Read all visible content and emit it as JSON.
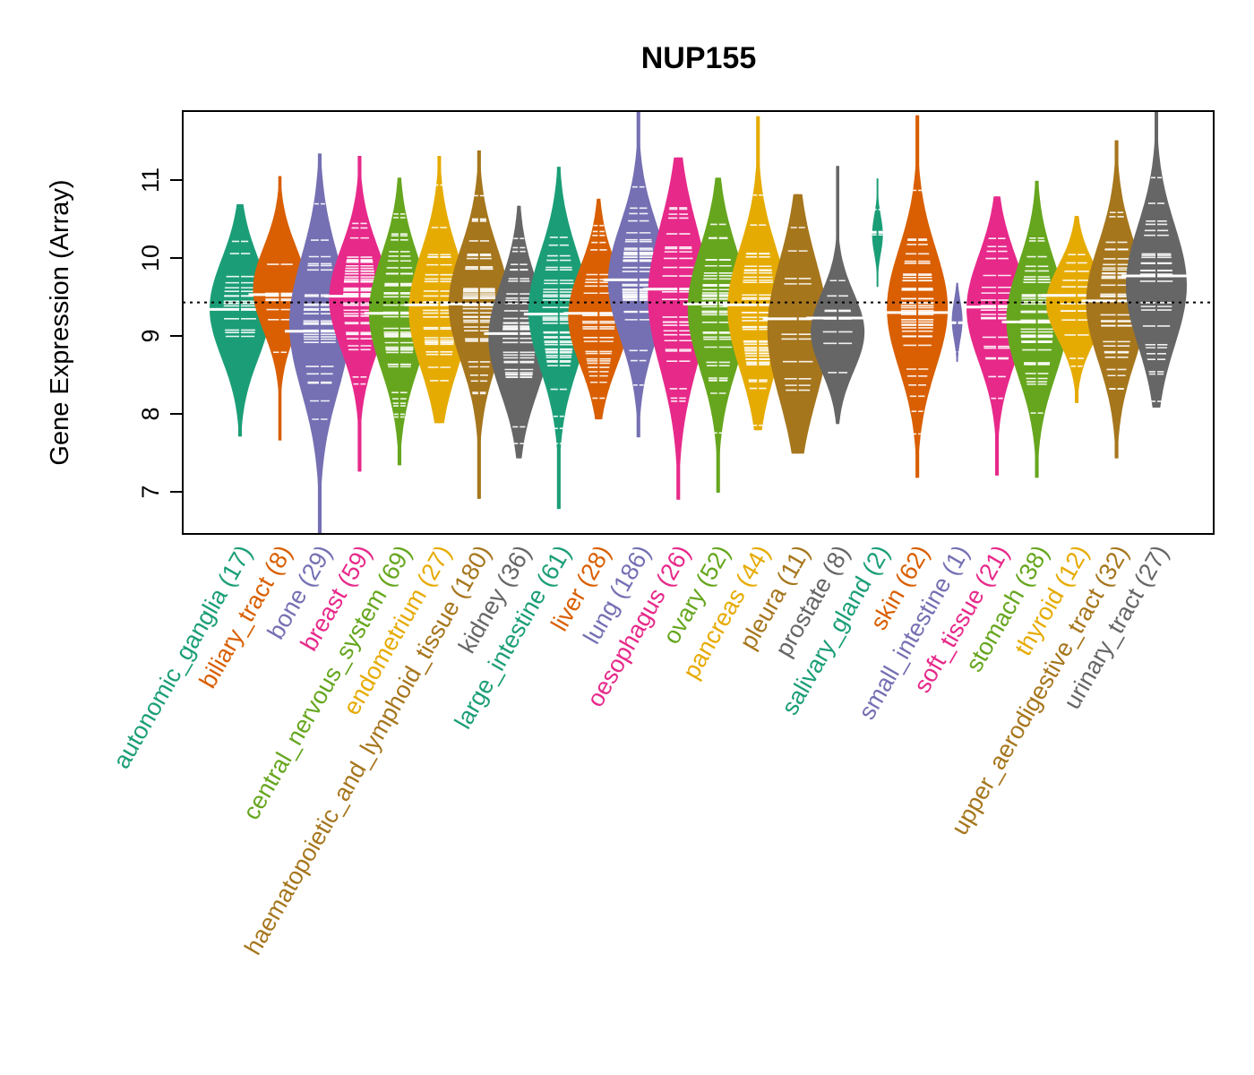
{
  "chart_data": {
    "type": "beanplot",
    "title": "NUP155",
    "xlabel": "",
    "ylabel": "Gene Expression (Array)",
    "ylim": [
      6.45,
      11.9
    ],
    "yticks": [
      7,
      8,
      9,
      10,
      11
    ],
    "grid": false,
    "legend": "none",
    "reference_line": {
      "value": 9.43,
      "style": "dotted",
      "color": "#000000"
    },
    "groups": [
      {
        "name": "autonomic_ganglia",
        "n": 17,
        "label": "autonomic_ganglia (17)",
        "color": "#1B9E77",
        "median": 9.34,
        "min": 7.71,
        "max": 10.69,
        "q_low": 8.65,
        "q_high": 10.05
      },
      {
        "name": "biliary_tract",
        "n": 8,
        "label": "biliary_tract (8)",
        "color": "#D95F02",
        "median": 9.53,
        "min": 7.66,
        "max": 11.05,
        "q_low": 9.0,
        "q_high": 10.2
      },
      {
        "name": "bone",
        "n": 29,
        "label": "bone (29)",
        "color": "#7570B3",
        "median": 9.06,
        "min": 6.46,
        "max": 11.34,
        "q_low": 8.2,
        "q_high": 10.1
      },
      {
        "name": "breast",
        "n": 59,
        "label": "breast (59)",
        "color": "#E7298A",
        "median": 9.51,
        "min": 7.26,
        "max": 11.31,
        "q_low": 8.75,
        "q_high": 10.2
      },
      {
        "name": "central_nervous_system",
        "n": 69,
        "label": "central_nervous_system (69)",
        "color": "#66A61E",
        "median": 9.29,
        "min": 7.34,
        "max": 11.03,
        "q_low": 8.5,
        "q_high": 10.1
      },
      {
        "name": "endometrium",
        "n": 27,
        "label": "endometrium (27)",
        "color": "#E6AB02",
        "median": 9.4,
        "min": 7.88,
        "max": 11.31,
        "q_low": 8.5,
        "q_high": 10.15
      },
      {
        "name": "haematopoietic_and_lymphoid_tissue",
        "n": 180,
        "label": "haematopoietic_and_lymphoid_tissue (180)",
        "color": "#A6761D",
        "median": 9.41,
        "min": 6.91,
        "max": 11.38,
        "q_low": 8.6,
        "q_high": 10.2
      },
      {
        "name": "kidney",
        "n": 36,
        "label": "kidney (36)",
        "color": "#666666",
        "median": 9.03,
        "min": 7.43,
        "max": 10.67,
        "q_low": 8.2,
        "q_high": 9.75
      },
      {
        "name": "large_intestine",
        "n": 61,
        "label": "large_intestine (61)",
        "color": "#1B9E77",
        "median": 9.28,
        "min": 6.78,
        "max": 11.17,
        "q_low": 8.5,
        "q_high": 10.15
      },
      {
        "name": "liver",
        "n": 28,
        "label": "liver (28)",
        "color": "#D95F02",
        "median": 9.29,
        "min": 7.93,
        "max": 10.76,
        "q_low": 8.55,
        "q_high": 9.95
      },
      {
        "name": "lung",
        "n": 186,
        "label": "lung (186)",
        "color": "#7570B3",
        "median": 9.72,
        "min": 7.7,
        "max": 11.89,
        "q_low": 8.9,
        "q_high": 10.5
      },
      {
        "name": "oesophagus",
        "n": 26,
        "label": "oesophagus (26)",
        "color": "#E7298A",
        "median": 9.6,
        "min": 6.9,
        "max": 11.29,
        "q_low": 8.5,
        "q_high": 10.5
      },
      {
        "name": "ovary",
        "n": 52,
        "label": "ovary (52)",
        "color": "#66A61E",
        "median": 9.41,
        "min": 6.99,
        "max": 11.03,
        "q_low": 8.5,
        "q_high": 10.2
      },
      {
        "name": "pancreas",
        "n": 44,
        "label": "pancreas (44)",
        "color": "#E6AB02",
        "median": 9.4,
        "min": 7.79,
        "max": 11.82,
        "q_low": 8.5,
        "q_high": 10.2
      },
      {
        "name": "pleura",
        "n": 11,
        "label": "pleura (11)",
        "color": "#A6761D",
        "median": 9.22,
        "min": 7.49,
        "max": 10.82,
        "q_low": 8.1,
        "q_high": 10.05
      },
      {
        "name": "prostate",
        "n": 8,
        "label": "prostate (8)",
        "color": "#666666",
        "median": 9.23,
        "min": 7.87,
        "max": 11.18,
        "q_low": 8.5,
        "q_high": 9.6
      },
      {
        "name": "salivary_gland",
        "n": 2,
        "label": "salivary_gland (2)",
        "color": "#1B9E77",
        "median": 10.33,
        "min": 9.63,
        "max": 11.02,
        "q_low": 10.1,
        "q_high": 10.5
      },
      {
        "name": "skin",
        "n": 62,
        "label": "skin (62)",
        "color": "#D95F02",
        "median": 9.3,
        "min": 7.18,
        "max": 11.83,
        "q_low": 8.5,
        "q_high": 10.2
      },
      {
        "name": "small_intestine",
        "n": 1,
        "label": "small_intestine (1)",
        "color": "#7570B3",
        "median": 9.17,
        "min": 8.67,
        "max": 9.68,
        "q_low": 9.0,
        "q_high": 9.4
      },
      {
        "name": "soft_tissue",
        "n": 21,
        "label": "soft_tissue (21)",
        "color": "#E7298A",
        "median": 9.37,
        "min": 7.21,
        "max": 10.79,
        "q_low": 8.6,
        "q_high": 10.1
      },
      {
        "name": "stomach",
        "n": 38,
        "label": "stomach (38)",
        "color": "#66A61E",
        "median": 9.18,
        "min": 7.18,
        "max": 10.99,
        "q_low": 8.4,
        "q_high": 10.0
      },
      {
        "name": "thyroid",
        "n": 12,
        "label": "thyroid (12)",
        "color": "#E6AB02",
        "median": 9.52,
        "min": 8.14,
        "max": 10.54,
        "q_low": 8.9,
        "q_high": 9.95
      },
      {
        "name": "upper_aerodigestive_tract",
        "n": 32,
        "label": "upper_aerodigestive_tract (32)",
        "color": "#A6761D",
        "median": 9.45,
        "min": 7.43,
        "max": 11.51,
        "q_low": 8.6,
        "q_high": 10.25
      },
      {
        "name": "urinary_tract",
        "n": 27,
        "label": "urinary_tract (27)",
        "color": "#666666",
        "median": 9.77,
        "min": 8.08,
        "max": 11.89,
        "q_low": 8.8,
        "q_high": 10.5
      }
    ]
  }
}
